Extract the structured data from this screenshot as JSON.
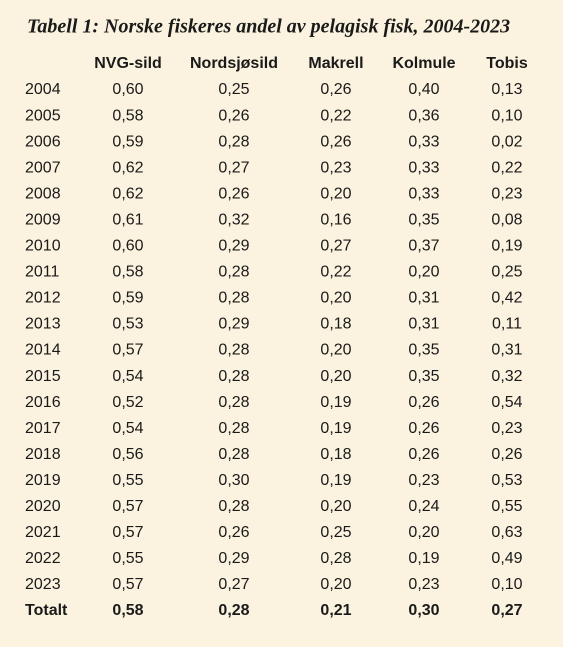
{
  "title": "Tabell 1: Norske fiskeres andel av pelagisk fisk, 2004-2023",
  "table": {
    "header": [
      "NVG-sild",
      "Nordsjøsild",
      "Makrell",
      "Kolmule",
      "Tobis"
    ],
    "rows": [
      [
        "2004",
        "0,60",
        "0,25",
        "0,26",
        "0,40",
        "0,13"
      ],
      [
        "2005",
        "0,58",
        "0,26",
        "0,22",
        "0,36",
        "0,10"
      ],
      [
        "2006",
        "0,59",
        "0,28",
        "0,26",
        "0,33",
        "0,02"
      ],
      [
        "2007",
        "0,62",
        "0,27",
        "0,23",
        "0,33",
        "0,22"
      ],
      [
        "2008",
        "0,62",
        "0,26",
        "0,20",
        "0,33",
        "0,23"
      ],
      [
        "2009",
        "0,61",
        "0,32",
        "0,16",
        "0,35",
        "0,08"
      ],
      [
        "2010",
        "0,60",
        "0,29",
        "0,27",
        "0,37",
        "0,19"
      ],
      [
        "2011",
        "0,58",
        "0,28",
        "0,22",
        "0,20",
        "0,25"
      ],
      [
        "2012",
        "0,59",
        "0,28",
        "0,20",
        "0,31",
        "0,42"
      ],
      [
        "2013",
        "0,53",
        "0,29",
        "0,18",
        "0,31",
        "0,11"
      ],
      [
        "2014",
        "0,57",
        "0,28",
        "0,20",
        "0,35",
        "0,31"
      ],
      [
        "2015",
        "0,54",
        "0,28",
        "0,20",
        "0,35",
        "0,32"
      ],
      [
        "2016",
        "0,52",
        "0,28",
        "0,19",
        "0,26",
        "0,54"
      ],
      [
        "2017",
        "0,54",
        "0,28",
        "0,19",
        "0,26",
        "0,23"
      ],
      [
        "2018",
        "0,56",
        "0,28",
        "0,18",
        "0,26",
        "0,26"
      ],
      [
        "2019",
        "0,55",
        "0,30",
        "0,19",
        "0,23",
        "0,53"
      ],
      [
        "2020",
        "0,57",
        "0,28",
        "0,20",
        "0,24",
        "0,55"
      ],
      [
        "2021",
        "0,57",
        "0,26",
        "0,25",
        "0,20",
        "0,63"
      ],
      [
        "2022",
        "0,55",
        "0,29",
        "0,28",
        "0,19",
        "0,49"
      ],
      [
        "2023",
        "0,57",
        "0,27",
        "0,20",
        "0,23",
        "0,10"
      ]
    ],
    "total": [
      "Totalt",
      "0,58",
      "0,28",
      "0,21",
      "0,30",
      "0,27"
    ]
  }
}
